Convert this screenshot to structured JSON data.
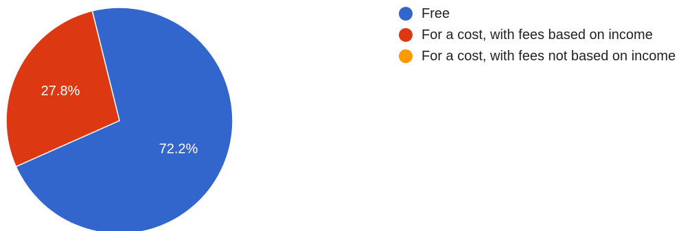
{
  "chart_data": {
    "type": "pie",
    "categories": [
      "Free",
      "For a cost, with fees based on income",
      "For a cost, with fees not based on income"
    ],
    "values": [
      72.2,
      27.8,
      0
    ],
    "value_labels": [
      "72.2%",
      "27.8%",
      ""
    ],
    "colors": [
      "#3366cc",
      "#dc3912",
      "#ff9900"
    ],
    "start_angle_deg": -13.9,
    "direction": "clockwise",
    "title": "",
    "legend_position": "right"
  }
}
